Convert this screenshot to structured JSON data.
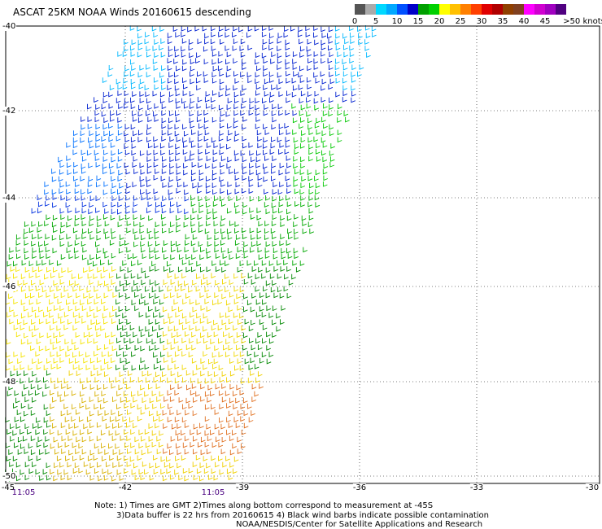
{
  "title": "ASCAT 25KM NOAA Winds 20160615 descending",
  "colorbar": {
    "labels": [
      "0",
      "5",
      "10",
      "15",
      "20",
      "25",
      "30",
      "35",
      "40",
      "45",
      ">50 knots"
    ],
    "colors": [
      "#555555",
      "#aaaaaa",
      "#00d8ff",
      "#00a8ff",
      "#0050ff",
      "#0000c8",
      "#00a000",
      "#00d000",
      "#ffff00",
      "#ffc000",
      "#ff8000",
      "#ff4000",
      "#e00000",
      "#b00000",
      "#904000",
      "#804020",
      "#ff00ff",
      "#d000d0",
      "#a000c0",
      "#500080"
    ]
  },
  "axes": {
    "lat_labels": [
      "-40",
      "-42",
      "-44",
      "-46",
      "-48",
      "-50"
    ],
    "lat_values": [
      -40,
      -42,
      -44,
      -46,
      -48,
      -50
    ],
    "lon_labels": [
      "-45",
      "-42",
      "-39",
      "-36",
      "-33",
      "-30"
    ],
    "lon_values": [
      -45,
      -42,
      -39,
      -36,
      -33,
      -30
    ]
  },
  "times": [
    "11:05",
    "11:05"
  ],
  "notes": {
    "line1": "Note: 1) Times are GMT 2)Times along bottom correspond to measurement at -45S",
    "line2": "3)Data buffer is 22 hrs from 20160615 4) Black wind barbs indicate possible contamination",
    "line3": "NOAA/NESDIS/Center for Satellite Applications and Research"
  }
}
